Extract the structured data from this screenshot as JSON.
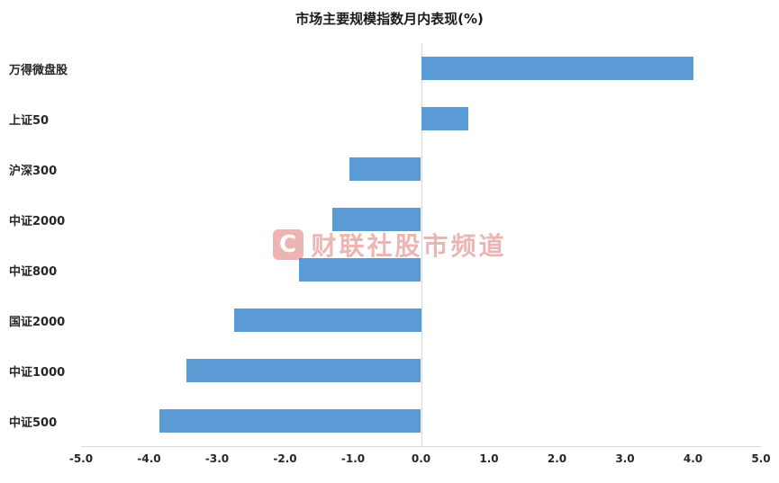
{
  "chart": {
    "title": "市场主要规模指数月内表现(%)"
  },
  "watermark": {
    "logo": "C",
    "text": "财联社股市频道",
    "color": "#d94f4f"
  },
  "chart_data": {
    "type": "bar",
    "orientation": "horizontal",
    "title": "市场主要规模指数月内表现(%)",
    "categories": [
      "万得微盘股",
      "上证50",
      "沪深300",
      "中证2000",
      "中证800",
      "国证2000",
      "中证1000",
      "中证500"
    ],
    "values": [
      4.0,
      0.7,
      -1.05,
      -1.3,
      -1.8,
      -2.75,
      -3.45,
      -3.85
    ],
    "xlim": [
      -5.0,
      5.0
    ],
    "x_ticks": [
      "-5.0",
      "-4.0",
      "-3.0",
      "-2.0",
      "-1.0",
      "0.0",
      "1.0",
      "2.0",
      "3.0",
      "4.0",
      "5.0"
    ],
    "xlabel": "",
    "ylabel": "",
    "bar_color": "#5B9BD5",
    "grid": false,
    "legend": false
  }
}
